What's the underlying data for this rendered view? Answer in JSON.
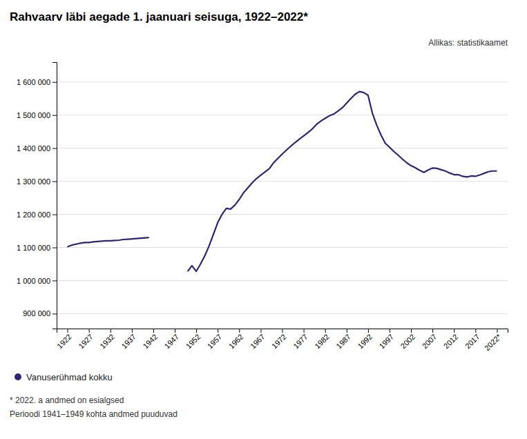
{
  "chart_data": {
    "type": "line",
    "title": "Rahvaarv läbi aegade 1. jaanuari seisuga, 1922–2022*",
    "annotations": [
      "Allikas: statistikaamet",
      "* 2022. a andmed on esialgsed",
      "Perioodi 1941–1949 kohta andmed puuduvad"
    ],
    "x": [
      1922,
      1923,
      1924,
      1925,
      1926,
      1927,
      1928,
      1929,
      1930,
      1931,
      1932,
      1933,
      1934,
      1935,
      1936,
      1937,
      1938,
      1939,
      1940,
      1941,
      1942,
      1943,
      1944,
      1945,
      1946,
      1947,
      1948,
      1949,
      1950,
      1951,
      1952,
      1953,
      1954,
      1955,
      1956,
      1957,
      1958,
      1959,
      1960,
      1961,
      1962,
      1963,
      1964,
      1965,
      1966,
      1967,
      1968,
      1969,
      1970,
      1971,
      1972,
      1973,
      1974,
      1975,
      1976,
      1977,
      1978,
      1979,
      1980,
      1981,
      1982,
      1983,
      1984,
      1985,
      1986,
      1987,
      1988,
      1989,
      1990,
      1991,
      1992,
      1993,
      1994,
      1995,
      1996,
      1997,
      1998,
      1999,
      2000,
      2001,
      2002,
      2003,
      2004,
      2005,
      2006,
      2007,
      2008,
      2009,
      2010,
      2011,
      2012,
      2013,
      2014,
      2015,
      2016,
      2017,
      2018,
      2019,
      2020,
      2021,
      2022
    ],
    "series": [
      {
        "name": "Vanuserühmad kokku",
        "color": "#2d2475",
        "values": [
          1102000,
          1107000,
          1110000,
          1113000,
          1115000,
          1115000,
          1117000,
          1118000,
          1119000,
          1120000,
          1120000,
          1121000,
          1122000,
          1124000,
          1125000,
          1126000,
          1127000,
          1128000,
          1129000,
          1130000,
          null,
          null,
          null,
          null,
          null,
          null,
          null,
          null,
          1028000,
          1045000,
          1028000,
          1050000,
          1075000,
          1105000,
          1140000,
          1175000,
          1200000,
          1218000,
          1216000,
          1228000,
          1245000,
          1265000,
          1280000,
          1295000,
          1308000,
          1318000,
          1328000,
          1338000,
          1356000,
          1369000,
          1382000,
          1394000,
          1406000,
          1417000,
          1427000,
          1437000,
          1447000,
          1458000,
          1472000,
          1482000,
          1490000,
          1498000,
          1503000,
          1512000,
          1522000,
          1536000,
          1550000,
          1563000,
          1571000,
          1568000,
          1560000,
          1506000,
          1470000,
          1440000,
          1415000,
          1403000,
          1390000,
          1379000,
          1367000,
          1356000,
          1347000,
          1341000,
          1333000,
          1327000,
          1334000,
          1340000,
          1339000,
          1335000,
          1331000,
          1325000,
          1320000,
          1320000,
          1315000,
          1313000,
          1316000,
          1315000,
          1319000,
          1324000,
          1329000,
          1331000,
          1331000
        ]
      }
    ],
    "xlim": [
      1919.5,
      2024.5
    ],
    "xticks": [
      1922,
      1927,
      1932,
      1937,
      1942,
      1947,
      1952,
      1957,
      1962,
      1967,
      1972,
      1977,
      1982,
      1987,
      1992,
      1997,
      2002,
      2007,
      2012,
      2017,
      {
        "value": 2022,
        "label": "2022*"
      }
    ],
    "ylim": [
      855000,
      1660000
    ],
    "yticks": [
      {
        "value": 900000,
        "label": "900 000"
      },
      {
        "value": 1000000,
        "label": "1 000 000"
      },
      {
        "value": 1100000,
        "label": "1 100 000"
      },
      {
        "value": 1200000,
        "label": "1 200 000"
      },
      {
        "value": 1300000,
        "label": "1 300 000"
      },
      {
        "value": 1400000,
        "label": "1 400 000"
      },
      {
        "value": 1500000,
        "label": "1 500 000"
      },
      {
        "value": 1600000,
        "label": "1 600 000"
      }
    ],
    "grid": true,
    "legend": "bottom"
  }
}
